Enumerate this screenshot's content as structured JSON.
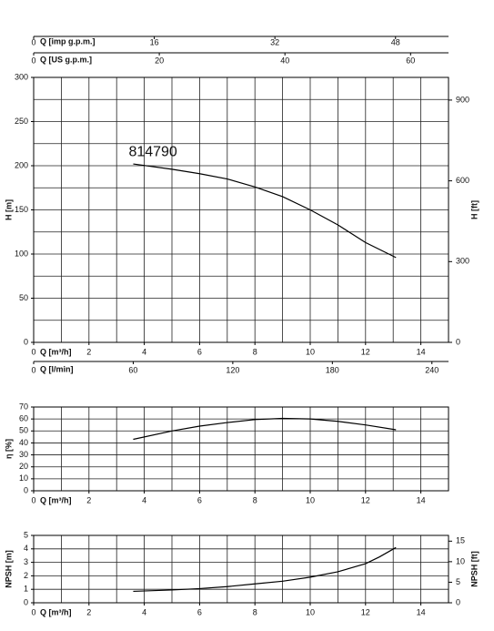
{
  "chart_data": [
    {
      "type": "line",
      "xlabel": "Q [m³/h]",
      "ylabel": "H [m]",
      "y2label": "H [ft]",
      "xlim": [
        0,
        15
      ],
      "xticks": [
        0,
        2,
        4,
        6,
        8,
        10,
        12,
        14
      ],
      "xgrid": [
        0,
        1,
        2,
        3,
        4,
        5,
        6,
        7,
        8,
        9,
        10,
        11,
        12,
        13,
        14,
        15
      ],
      "ylim": [
        0,
        300
      ],
      "yticks": [
        0,
        50,
        100,
        150,
        200,
        250,
        300
      ],
      "ygrid": [
        0,
        25,
        50,
        75,
        100,
        125,
        150,
        175,
        200,
        225,
        250,
        275,
        300
      ],
      "y2lim": [
        0,
        984.25
      ],
      "y2ticks": [
        0,
        300,
        600,
        900
      ],
      "extra_x_axes": [
        {
          "label": "Q [imp g.p.m.]",
          "position": "top",
          "lim": [
            0,
            55.03
          ],
          "ticks": [
            0,
            16,
            32,
            48
          ]
        },
        {
          "label": "Q [US g.p.m.]",
          "position": "top",
          "lim": [
            0,
            66.04
          ],
          "ticks": [
            0,
            20,
            40,
            60
          ]
        },
        {
          "label": "Q [l/min]",
          "position": "bottom",
          "lim": [
            0,
            250
          ],
          "ticks": [
            0,
            60,
            120,
            180,
            240
          ]
        }
      ],
      "series": [
        {
          "name": "814790",
          "color": "#000000",
          "x": [
            3.6,
            5,
            6,
            7,
            8,
            9,
            10,
            11,
            12,
            13.1
          ],
          "values": [
            202,
            196,
            191,
            185,
            176,
            165,
            150,
            133,
            113,
            96
          ]
        }
      ]
    },
    {
      "type": "line",
      "xlabel": "Q [m³/h]",
      "ylabel": "η [%]",
      "xlim": [
        0,
        15
      ],
      "xticks": [
        0,
        2,
        4,
        6,
        8,
        10,
        12,
        14
      ],
      "xgrid": [
        0,
        1,
        2,
        3,
        4,
        5,
        6,
        7,
        8,
        9,
        10,
        11,
        12,
        13,
        14,
        15
      ],
      "ylim": [
        0,
        70
      ],
      "yticks": [
        0,
        10,
        20,
        30,
        40,
        50,
        60,
        70
      ],
      "series": [
        {
          "color": "#000000",
          "x": [
            3.6,
            5,
            6,
            7,
            8,
            9,
            10,
            11,
            12,
            13.1
          ],
          "values": [
            43,
            50,
            54,
            57,
            59.5,
            60.5,
            60,
            58,
            55,
            51
          ]
        }
      ]
    },
    {
      "type": "line",
      "xlabel": "Q [m³/h]",
      "ylabel": "NPSH [m]",
      "y2label": "NPSH [ft]",
      "xlim": [
        0,
        15
      ],
      "xticks": [
        0,
        2,
        4,
        6,
        8,
        10,
        12,
        14
      ],
      "xgrid": [
        0,
        1,
        2,
        3,
        4,
        5,
        6,
        7,
        8,
        9,
        10,
        11,
        12,
        13,
        14,
        15
      ],
      "ylim": [
        0,
        5
      ],
      "yticks": [
        0,
        1,
        2,
        3,
        4,
        5
      ],
      "y2lim": [
        0,
        16.4
      ],
      "y2ticks": [
        0,
        5,
        10,
        15
      ],
      "series": [
        {
          "color": "#000000",
          "x": [
            3.6,
            5,
            6,
            7,
            8,
            9,
            10,
            11,
            12,
            12.5,
            13.1
          ],
          "values": [
            0.85,
            0.95,
            1.05,
            1.2,
            1.4,
            1.6,
            1.9,
            2.3,
            2.9,
            3.4,
            4.1
          ]
        }
      ]
    }
  ]
}
